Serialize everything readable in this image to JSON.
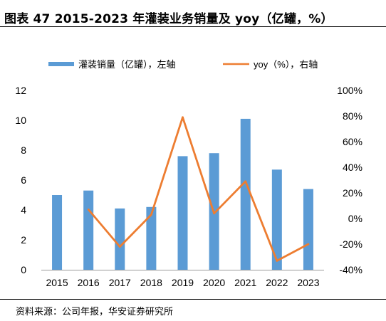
{
  "title": "图表 47 2015-2023 年灌装业务销量及 yoy（亿罐，%）",
  "source": "资料来源：公司年报，华安证券研究所",
  "chart_data": {
    "type": "bar",
    "categories": [
      "2015",
      "2016",
      "2017",
      "2018",
      "2019",
      "2020",
      "2021",
      "2022",
      "2023"
    ],
    "series": [
      {
        "name": "灌装销量（亿罐），左轴",
        "type": "bar",
        "axis": "left",
        "color": "#5B9BD5",
        "values": [
          5.0,
          5.3,
          4.1,
          4.2,
          7.6,
          7.8,
          10.1,
          6.7,
          5.4
        ]
      },
      {
        "name": "yoy（%），右轴",
        "type": "line",
        "axis": "right",
        "color": "#ED7D31",
        "values": [
          null,
          7,
          -22,
          3,
          79,
          4,
          29,
          -33,
          -20
        ]
      }
    ],
    "left_axis": {
      "min": 0,
      "max": 12,
      "step": 2,
      "tick_labels": [
        "0",
        "2",
        "4",
        "6",
        "8",
        "10",
        "12"
      ]
    },
    "right_axis": {
      "min": -40,
      "max": 100,
      "step": 20,
      "tick_labels": [
        "-40%",
        "-20%",
        "0%",
        "20%",
        "40%",
        "60%",
        "80%",
        "100%"
      ]
    },
    "grid": false,
    "legend": "top"
  }
}
